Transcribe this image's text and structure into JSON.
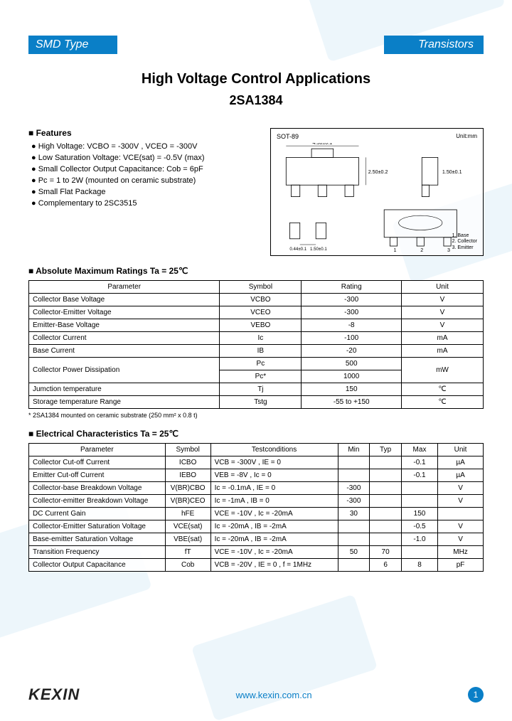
{
  "header": {
    "left": "SMD Type",
    "right": "Transistors"
  },
  "title": "High Voltage Control Applications",
  "part_number": "2SA1384",
  "features": {
    "heading": "Features",
    "items": [
      "High Voltage: VCBO = -300V , VCEO = -300V",
      "Low Saturation Voltage: VCE(sat) = -0.5V (max)",
      "Small Collector Output Capacitance: Cob = 6pF",
      "Pc = 1 to 2W (mounted on ceramic substrate)",
      "Small Flat Package",
      "Complementary to 2SC3515"
    ]
  },
  "package": {
    "name": "SOT-89",
    "unit": "Unit:mm",
    "top_dim": "4.50±0.1",
    "height_dim": "2.50±0.2",
    "body_h": "1.50±0.1",
    "lead_w": "0.44±0.1",
    "pitch": "1.50±0.1",
    "pins": [
      "1. Base",
      "2. Collector",
      "3. Emitter"
    ]
  },
  "abs_max": {
    "heading": "Absolute Maximum Ratings Ta = 25℃",
    "columns": [
      "Parameter",
      "Symbol",
      "Rating",
      "Unit"
    ],
    "rows": [
      [
        "Collector Base Voltage",
        "VCBO",
        "-300",
        "V"
      ],
      [
        "Collector-Emitter Voltage",
        "VCEO",
        "-300",
        "V"
      ],
      [
        "Emitter-Base Voltage",
        "VEBO",
        "-8",
        "V"
      ],
      [
        "Collector Current",
        "Ic",
        "-100",
        "mA"
      ],
      [
        "Base Current",
        "IB",
        "-20",
        "mA"
      ]
    ],
    "power_row": {
      "param": "Collector Power Dissipation",
      "sym1": "Pc",
      "val1": "500",
      "sym2": "Pc*",
      "val2": "1000",
      "unit": "mW"
    },
    "tail_rows": [
      [
        "Jumction temperature",
        "Tj",
        "150",
        "℃"
      ],
      [
        "Storage temperature Range",
        "Tstg",
        "-55 to +150",
        "℃"
      ]
    ],
    "footnote": "* 2SA1384 mounted on ceramic substrate (250 mm² x 0.8 t)"
  },
  "elec": {
    "heading": "Electrical Characteristics Ta = 25℃",
    "columns": [
      "Parameter",
      "Symbol",
      "Testconditions",
      "Min",
      "Typ",
      "Max",
      "Unit"
    ],
    "rows": [
      [
        "Collector Cut-off Current",
        "ICBO",
        "VCB = -300V , IE = 0",
        "",
        "",
        "-0.1",
        "µA"
      ],
      [
        "Emitter Cut-off Current",
        "IEBO",
        "VEB = -8V , Ic = 0",
        "",
        "",
        "-0.1",
        "µA"
      ],
      [
        "Collector-base Breakdown Voltage",
        "V(BR)CBO",
        "Ic = -0.1mA , IE = 0",
        "-300",
        "",
        "",
        "V"
      ],
      [
        "Collector-emitter Breakdown Voltage",
        "V(BR)CEO",
        "Ic = -1mA , IB = 0",
        "-300",
        "",
        "",
        "V"
      ],
      [
        "DC Current Gain",
        "hFE",
        "VCE = -10V , Ic = -20mA",
        "30",
        "",
        "150",
        ""
      ],
      [
        "Collector-Emitter Saturation Voltage",
        "VCE(sat)",
        "Ic = -20mA , IB = -2mA",
        "",
        "",
        "-0.5",
        "V"
      ],
      [
        "Base-emitter Saturation Voltage",
        "VBE(sat)",
        "Ic = -20mA , IB = -2mA",
        "",
        "",
        "-1.0",
        "V"
      ],
      [
        "Transition Frequency",
        "fT",
        "VCE = -10V , Ic = -20mA",
        "50",
        "70",
        "",
        "MHz"
      ],
      [
        "Collector Output Capacitance",
        "Cob",
        "VCB = -20V , IE = 0 , f = 1MHz",
        "",
        "6",
        "8",
        "pF"
      ]
    ]
  },
  "footer": {
    "logo": "KEXIN",
    "url": "www.kexin.com.cn",
    "page": "1"
  },
  "colors": {
    "brand": "#0a7fc7",
    "watermark": "#d8ecf7"
  }
}
